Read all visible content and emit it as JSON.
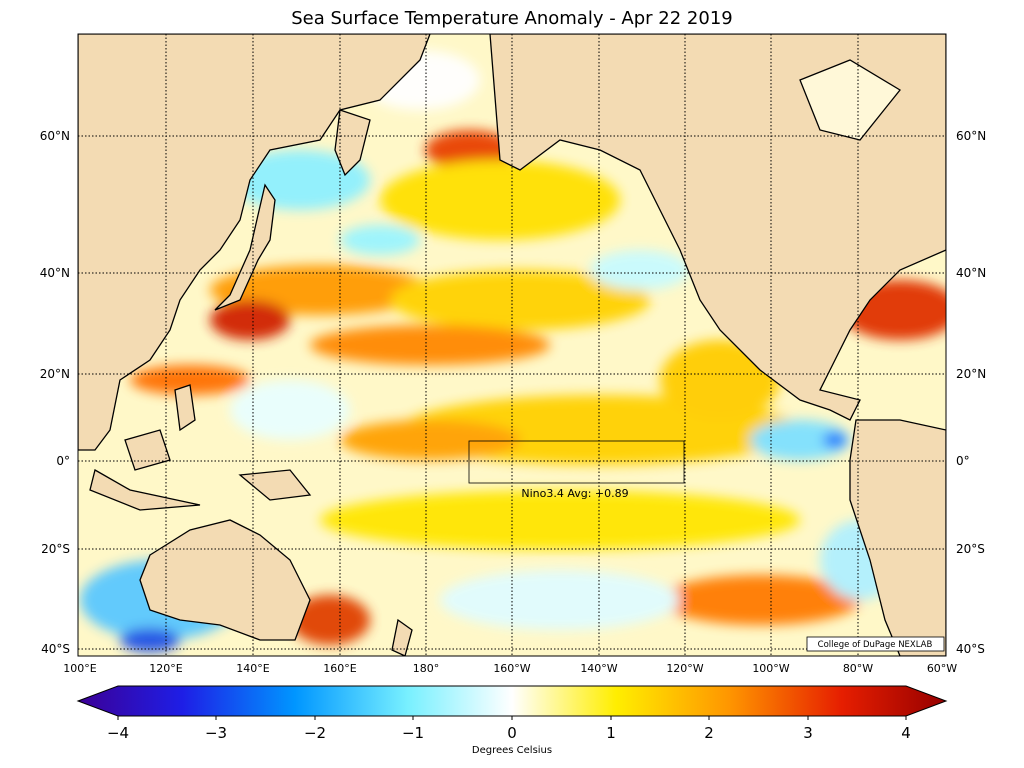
{
  "title": "Sea Surface Temperature Anomaly - Apr 22 2019",
  "map": {
    "lat_labels": [
      "60°N",
      "40°N",
      "20°N",
      "0°",
      "20°S",
      "40°S"
    ],
    "lon_labels": [
      "100°E",
      "120°E",
      "140°E",
      "160°E",
      "180°",
      "160°W",
      "140°W",
      "120°W",
      "100°W",
      "80°W",
      "60°W"
    ],
    "nino_box_label": "Nino3.4 Avg: +0.89",
    "credit": "College of DuPage NEXLAB",
    "colors": {
      "land": "#f3dbb3",
      "warm": "#ffe600",
      "hot": "#e03000",
      "cool": "#7ee8ff"
    }
  },
  "colorbar": {
    "ticks": [
      "−4",
      "−3",
      "−2",
      "−1",
      "0",
      "1",
      "2",
      "3",
      "4"
    ],
    "label": "Degrees Celsius"
  }
}
